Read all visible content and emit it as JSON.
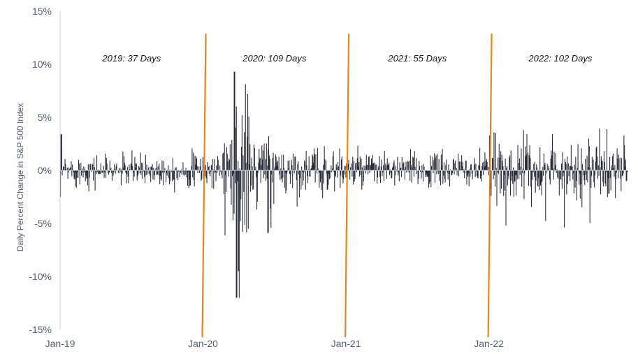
{
  "chart_data": {
    "type": "bar",
    "ylabel": "Daily Percent Change in S&P 500 Index",
    "xlabel": "",
    "ylim": [
      -15,
      15
    ],
    "y_ticks": [
      "15%",
      "10%",
      "5%",
      "0%",
      "-5%",
      "-10%",
      "-15%"
    ],
    "y_tick_values": [
      15,
      10,
      5,
      0,
      -5,
      -10,
      -15
    ],
    "x_ticks": [
      "Jan-19",
      "Jan-20",
      "Jan-21",
      "Jan-22"
    ],
    "x_range_years": [
      2019.0,
      2022.97
    ],
    "year_markers": [
      2020.0,
      2021.0,
      2022.0
    ],
    "annotations": [
      {
        "text": "2019: 37 Days",
        "year": 2019.5
      },
      {
        "text": "2020: 109 Days",
        "year": 2020.5
      },
      {
        "text": "2021: 55 Days",
        "year": 2021.5
      },
      {
        "text": "2022: 102 Days",
        "year": 2022.5
      }
    ],
    "notable_points": [
      {
        "date": "Jan-19",
        "value": 3.4
      },
      {
        "date": "Mar-20",
        "value": -12.0
      },
      {
        "date": "Mar-20",
        "value": -9.5
      },
      {
        "date": "Mar-20",
        "value": 9.3
      },
      {
        "date": "Jun-20",
        "value": -5.9
      }
    ],
    "series": [
      {
        "values_note": "daily percent change, one bar per trading day"
      }
    ],
    "colors": {
      "bars": "#2b2d3a",
      "markers": "#e8851c",
      "axis": "#c8ccd6",
      "text": "#54607a"
    }
  }
}
